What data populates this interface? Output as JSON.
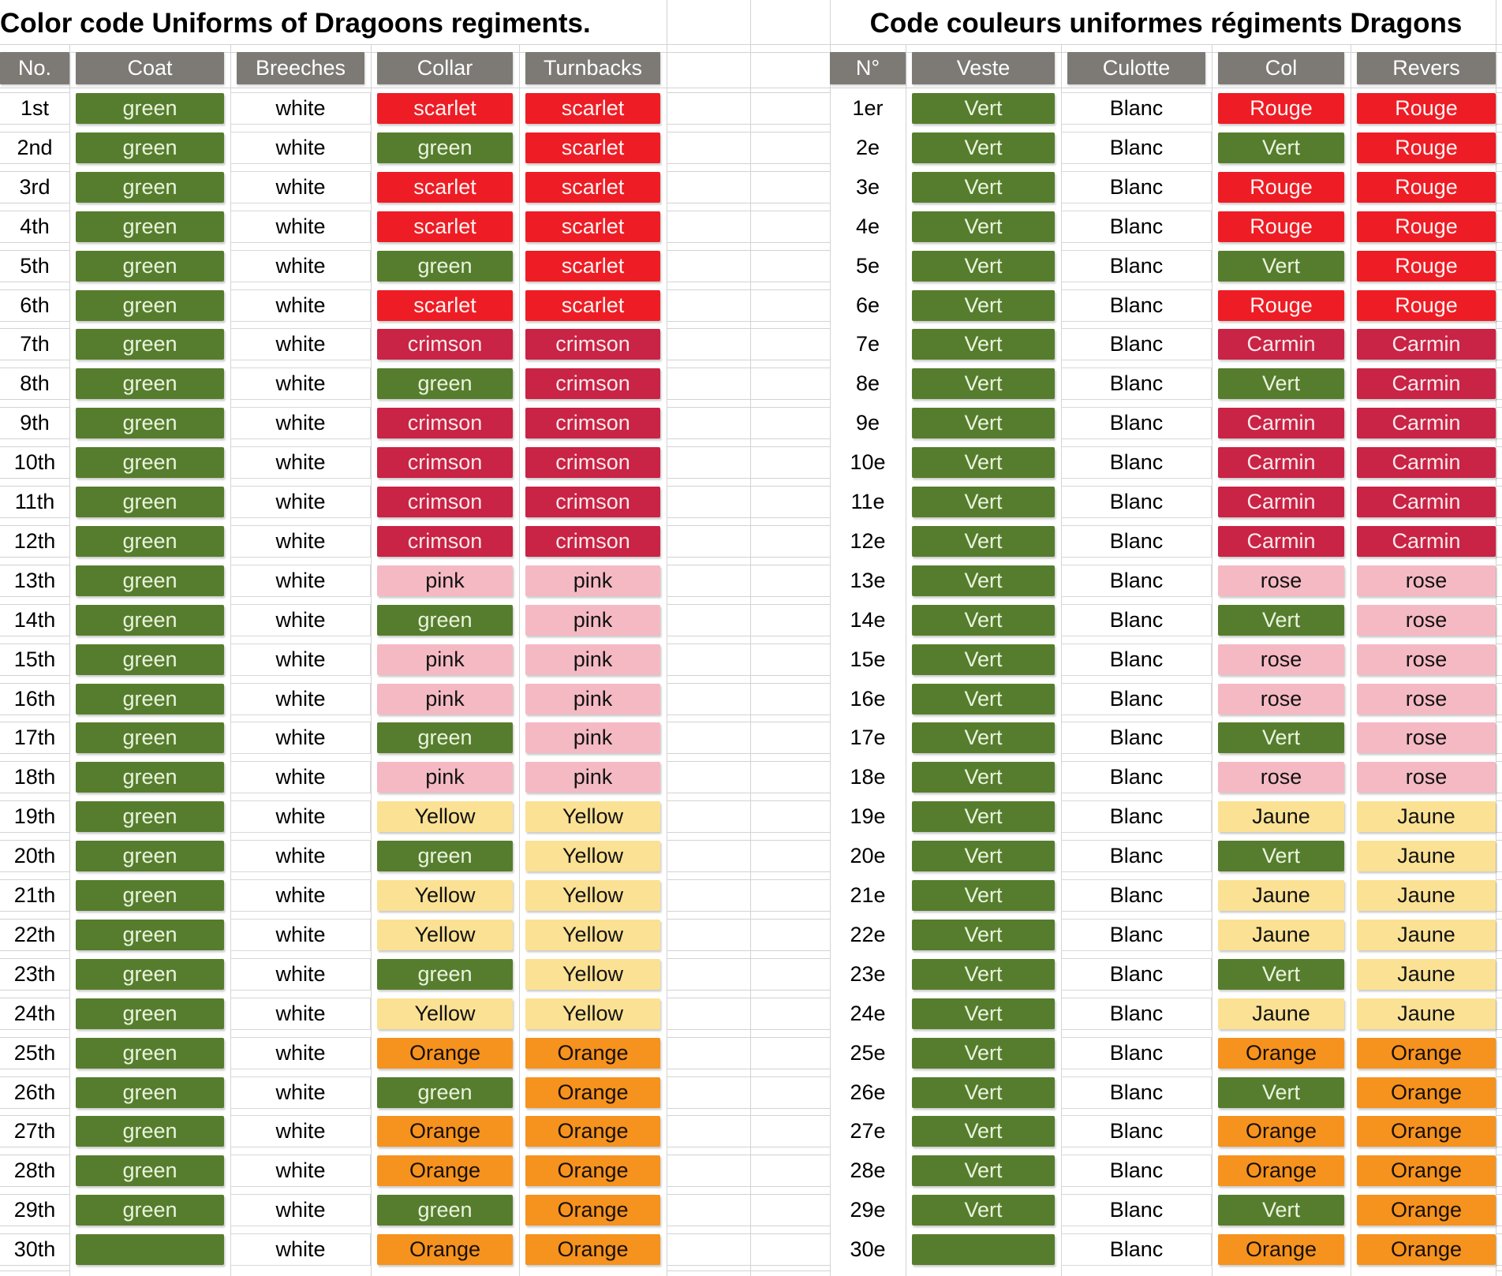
{
  "left_table": {
    "title": "Color code Uniforms of Dragoons regiments.",
    "headers": [
      "No.",
      "Coat",
      "Breeches",
      "Collar",
      "Turnbacks"
    ],
    "rows": [
      [
        "1st",
        [
          "green",
          "green"
        ],
        [
          "white",
          "white"
        ],
        [
          "scarlet",
          "scarlet"
        ],
        [
          "scarlet",
          "scarlet"
        ]
      ],
      [
        "2nd",
        [
          "green",
          "green"
        ],
        [
          "white",
          "white"
        ],
        [
          "green",
          "green"
        ],
        [
          "scarlet",
          "scarlet"
        ]
      ],
      [
        "3rd",
        [
          "green",
          "green"
        ],
        [
          "white",
          "white"
        ],
        [
          "scarlet",
          "scarlet"
        ],
        [
          "scarlet",
          "scarlet"
        ]
      ],
      [
        "4th",
        [
          "green",
          "green"
        ],
        [
          "white",
          "white"
        ],
        [
          "scarlet",
          "scarlet"
        ],
        [
          "scarlet",
          "scarlet"
        ]
      ],
      [
        "5th",
        [
          "green",
          "green"
        ],
        [
          "white",
          "white"
        ],
        [
          "green",
          "green"
        ],
        [
          "scarlet",
          "scarlet"
        ]
      ],
      [
        "6th",
        [
          "green",
          "green"
        ],
        [
          "white",
          "white"
        ],
        [
          "scarlet",
          "scarlet"
        ],
        [
          "scarlet",
          "scarlet"
        ]
      ],
      [
        "7th",
        [
          "green",
          "green"
        ],
        [
          "white",
          "white"
        ],
        [
          "crimson",
          "crimson"
        ],
        [
          "crimson",
          "crimson"
        ]
      ],
      [
        "8th",
        [
          "green",
          "green"
        ],
        [
          "white",
          "white"
        ],
        [
          "green",
          "green"
        ],
        [
          "crimson",
          "crimson"
        ]
      ],
      [
        "9th",
        [
          "green",
          "green"
        ],
        [
          "white",
          "white"
        ],
        [
          "crimson",
          "crimson"
        ],
        [
          "crimson",
          "crimson"
        ]
      ],
      [
        "10th",
        [
          "green",
          "green"
        ],
        [
          "white",
          "white"
        ],
        [
          "crimson",
          "crimson"
        ],
        [
          "crimson",
          "crimson"
        ]
      ],
      [
        "11th",
        [
          "green",
          "green"
        ],
        [
          "white",
          "white"
        ],
        [
          "crimson",
          "crimson"
        ],
        [
          "crimson",
          "crimson"
        ]
      ],
      [
        "12th",
        [
          "green",
          "green"
        ],
        [
          "white",
          "white"
        ],
        [
          "crimson",
          "crimson"
        ],
        [
          "crimson",
          "crimson"
        ]
      ],
      [
        "13th",
        [
          "green",
          "green"
        ],
        [
          "white",
          "white"
        ],
        [
          "pink",
          "pink"
        ],
        [
          "pink",
          "pink"
        ]
      ],
      [
        "14th",
        [
          "green",
          "green"
        ],
        [
          "white",
          "white"
        ],
        [
          "green",
          "green"
        ],
        [
          "pink",
          "pink"
        ]
      ],
      [
        "15th",
        [
          "green",
          "green"
        ],
        [
          "white",
          "white"
        ],
        [
          "pink",
          "pink"
        ],
        [
          "pink",
          "pink"
        ]
      ],
      [
        "16th",
        [
          "green",
          "green"
        ],
        [
          "white",
          "white"
        ],
        [
          "pink",
          "pink"
        ],
        [
          "pink",
          "pink"
        ]
      ],
      [
        "17th",
        [
          "green",
          "green"
        ],
        [
          "white",
          "white"
        ],
        [
          "green",
          "green"
        ],
        [
          "pink",
          "pink"
        ]
      ],
      [
        "18th",
        [
          "green",
          "green"
        ],
        [
          "white",
          "white"
        ],
        [
          "pink",
          "pink"
        ],
        [
          "pink",
          "pink"
        ]
      ],
      [
        "19th",
        [
          "green",
          "green"
        ],
        [
          "white",
          "white"
        ],
        [
          "Yellow",
          "yellow"
        ],
        [
          "Yellow",
          "yellow"
        ]
      ],
      [
        "20th",
        [
          "green",
          "green"
        ],
        [
          "white",
          "white"
        ],
        [
          "green",
          "green"
        ],
        [
          "Yellow",
          "yellow"
        ]
      ],
      [
        "21th",
        [
          "green",
          "green"
        ],
        [
          "white",
          "white"
        ],
        [
          "Yellow",
          "yellow"
        ],
        [
          "Yellow",
          "yellow"
        ]
      ],
      [
        "22th",
        [
          "green",
          "green"
        ],
        [
          "white",
          "white"
        ],
        [
          "Yellow",
          "yellow"
        ],
        [
          "Yellow",
          "yellow"
        ]
      ],
      [
        "23th",
        [
          "green",
          "green"
        ],
        [
          "white",
          "white"
        ],
        [
          "green",
          "green"
        ],
        [
          "Yellow",
          "yellow"
        ]
      ],
      [
        "24th",
        [
          "green",
          "green"
        ],
        [
          "white",
          "white"
        ],
        [
          "Yellow",
          "yellow"
        ],
        [
          "Yellow",
          "yellow"
        ]
      ],
      [
        "25th",
        [
          "green",
          "green"
        ],
        [
          "white",
          "white"
        ],
        [
          "Orange",
          "orange"
        ],
        [
          "Orange",
          "orange"
        ]
      ],
      [
        "26th",
        [
          "green",
          "green"
        ],
        [
          "white",
          "white"
        ],
        [
          "green",
          "green"
        ],
        [
          "Orange",
          "orange"
        ]
      ],
      [
        "27th",
        [
          "green",
          "green"
        ],
        [
          "white",
          "white"
        ],
        [
          "Orange",
          "orange"
        ],
        [
          "Orange",
          "orange"
        ]
      ],
      [
        "28th",
        [
          "green",
          "green"
        ],
        [
          "white",
          "white"
        ],
        [
          "Orange",
          "orange"
        ],
        [
          "Orange",
          "orange"
        ]
      ],
      [
        "29th",
        [
          "green",
          "green"
        ],
        [
          "white",
          "white"
        ],
        [
          "green",
          "green"
        ],
        [
          "Orange",
          "orange"
        ]
      ],
      [
        "30th",
        [
          "",
          "green"
        ],
        [
          "white",
          "white"
        ],
        [
          "Orange",
          "orange"
        ],
        [
          "Orange",
          "orange"
        ]
      ]
    ]
  },
  "right_table": {
    "title": "Code couleurs uniformes régiments Dragons",
    "headers": [
      "N°",
      "Veste",
      "Culotte",
      "Col",
      "Revers"
    ],
    "rows": [
      [
        "1er",
        [
          "Vert",
          "green"
        ],
        [
          "Blanc",
          "white"
        ],
        [
          "Rouge",
          "scarlet"
        ],
        [
          "Rouge",
          "scarlet"
        ]
      ],
      [
        "2e",
        [
          "Vert",
          "green"
        ],
        [
          "Blanc",
          "white"
        ],
        [
          "Vert",
          "green"
        ],
        [
          "Rouge",
          "scarlet"
        ]
      ],
      [
        "3e",
        [
          "Vert",
          "green"
        ],
        [
          "Blanc",
          "white"
        ],
        [
          "Rouge",
          "scarlet"
        ],
        [
          "Rouge",
          "scarlet"
        ]
      ],
      [
        "4e",
        [
          "Vert",
          "green"
        ],
        [
          "Blanc",
          "white"
        ],
        [
          "Rouge",
          "scarlet"
        ],
        [
          "Rouge",
          "scarlet"
        ]
      ],
      [
        "5e",
        [
          "Vert",
          "green"
        ],
        [
          "Blanc",
          "white"
        ],
        [
          "Vert",
          "green"
        ],
        [
          "Rouge",
          "scarlet"
        ]
      ],
      [
        "6e",
        [
          "Vert",
          "green"
        ],
        [
          "Blanc",
          "white"
        ],
        [
          "Rouge",
          "scarlet"
        ],
        [
          "Rouge",
          "scarlet"
        ]
      ],
      [
        "7e",
        [
          "Vert",
          "green"
        ],
        [
          "Blanc",
          "white"
        ],
        [
          "Carmin",
          "crimson"
        ],
        [
          "Carmin",
          "crimson"
        ]
      ],
      [
        "8e",
        [
          "Vert",
          "green"
        ],
        [
          "Blanc",
          "white"
        ],
        [
          "Vert",
          "green"
        ],
        [
          "Carmin",
          "crimson"
        ]
      ],
      [
        "9e",
        [
          "Vert",
          "green"
        ],
        [
          "Blanc",
          "white"
        ],
        [
          "Carmin",
          "crimson"
        ],
        [
          "Carmin",
          "crimson"
        ]
      ],
      [
        "10e",
        [
          "Vert",
          "green"
        ],
        [
          "Blanc",
          "white"
        ],
        [
          "Carmin",
          "crimson"
        ],
        [
          "Carmin",
          "crimson"
        ]
      ],
      [
        "11e",
        [
          "Vert",
          "green"
        ],
        [
          "Blanc",
          "white"
        ],
        [
          "Carmin",
          "crimson"
        ],
        [
          "Carmin",
          "crimson"
        ]
      ],
      [
        "12e",
        [
          "Vert",
          "green"
        ],
        [
          "Blanc",
          "white"
        ],
        [
          "Carmin",
          "crimson"
        ],
        [
          "Carmin",
          "crimson"
        ]
      ],
      [
        "13e",
        [
          "Vert",
          "green"
        ],
        [
          "Blanc",
          "white"
        ],
        [
          "rose",
          "pink"
        ],
        [
          "rose",
          "pink"
        ]
      ],
      [
        "14e",
        [
          "Vert",
          "green"
        ],
        [
          "Blanc",
          "white"
        ],
        [
          "Vert",
          "green"
        ],
        [
          "rose",
          "pink"
        ]
      ],
      [
        "15e",
        [
          "Vert",
          "green"
        ],
        [
          "Blanc",
          "white"
        ],
        [
          "rose",
          "pink"
        ],
        [
          "rose",
          "pink"
        ]
      ],
      [
        "16e",
        [
          "Vert",
          "green"
        ],
        [
          "Blanc",
          "white"
        ],
        [
          "rose",
          "pink"
        ],
        [
          "rose",
          "pink"
        ]
      ],
      [
        "17e",
        [
          "Vert",
          "green"
        ],
        [
          "Blanc",
          "white"
        ],
        [
          "Vert",
          "green"
        ],
        [
          "rose",
          "pink"
        ]
      ],
      [
        "18e",
        [
          "Vert",
          "green"
        ],
        [
          "Blanc",
          "white"
        ],
        [
          "rose",
          "pink"
        ],
        [
          "rose",
          "pink"
        ]
      ],
      [
        "19e",
        [
          "Vert",
          "green"
        ],
        [
          "Blanc",
          "white"
        ],
        [
          "Jaune",
          "yellow"
        ],
        [
          "Jaune",
          "yellow"
        ]
      ],
      [
        "20e",
        [
          "Vert",
          "green"
        ],
        [
          "Blanc",
          "white"
        ],
        [
          "Vert",
          "green"
        ],
        [
          "Jaune",
          "yellow"
        ]
      ],
      [
        "21e",
        [
          "Vert",
          "green"
        ],
        [
          "Blanc",
          "white"
        ],
        [
          "Jaune",
          "yellow"
        ],
        [
          "Jaune",
          "yellow"
        ]
      ],
      [
        "22e",
        [
          "Vert",
          "green"
        ],
        [
          "Blanc",
          "white"
        ],
        [
          "Jaune",
          "yellow"
        ],
        [
          "Jaune",
          "yellow"
        ]
      ],
      [
        "23e",
        [
          "Vert",
          "green"
        ],
        [
          "Blanc",
          "white"
        ],
        [
          "Vert",
          "green"
        ],
        [
          "Jaune",
          "yellow"
        ]
      ],
      [
        "24e",
        [
          "Vert",
          "green"
        ],
        [
          "Blanc",
          "white"
        ],
        [
          "Jaune",
          "yellow"
        ],
        [
          "Jaune",
          "yellow"
        ]
      ],
      [
        "25e",
        [
          "Vert",
          "green"
        ],
        [
          "Blanc",
          "white"
        ],
        [
          "Orange",
          "orange"
        ],
        [
          "Orange",
          "orange"
        ]
      ],
      [
        "26e",
        [
          "Vert",
          "green"
        ],
        [
          "Blanc",
          "white"
        ],
        [
          "Vert",
          "green"
        ],
        [
          "Orange",
          "orange"
        ]
      ],
      [
        "27e",
        [
          "Vert",
          "green"
        ],
        [
          "Blanc",
          "white"
        ],
        [
          "Orange",
          "orange"
        ],
        [
          "Orange",
          "orange"
        ]
      ],
      [
        "28e",
        [
          "Vert",
          "green"
        ],
        [
          "Blanc",
          "white"
        ],
        [
          "Orange",
          "orange"
        ],
        [
          "Orange",
          "orange"
        ]
      ],
      [
        "29e",
        [
          "Vert",
          "green"
        ],
        [
          "Blanc",
          "white"
        ],
        [
          "Vert",
          "green"
        ],
        [
          "Orange",
          "orange"
        ]
      ],
      [
        "30e",
        [
          "",
          "green"
        ],
        [
          "Blanc",
          "white"
        ],
        [
          "Orange",
          "orange"
        ],
        [
          "Orange",
          "orange"
        ]
      ]
    ]
  },
  "colors": {
    "green": {
      "bg": "#567D2D",
      "fg": "#EAF4DE"
    },
    "white": {
      "bg": "#FFFFFF",
      "fg": "#000000"
    },
    "scarlet": {
      "bg": "#EE1C25",
      "fg": "#FCF3F1"
    },
    "crimson": {
      "bg": "#C92345",
      "fg": "#F8E8EA"
    },
    "pink": {
      "bg": "#F5B9C3",
      "fg": "#121212"
    },
    "yellow": {
      "bg": "#FBE193",
      "fg": "#121212"
    },
    "orange": {
      "bg": "#F6921E",
      "fg": "#17100A"
    },
    "header": {
      "bg": "#7D7A76",
      "fg": "#FFFFFF"
    },
    "gridline": "#D3D3D3"
  }
}
